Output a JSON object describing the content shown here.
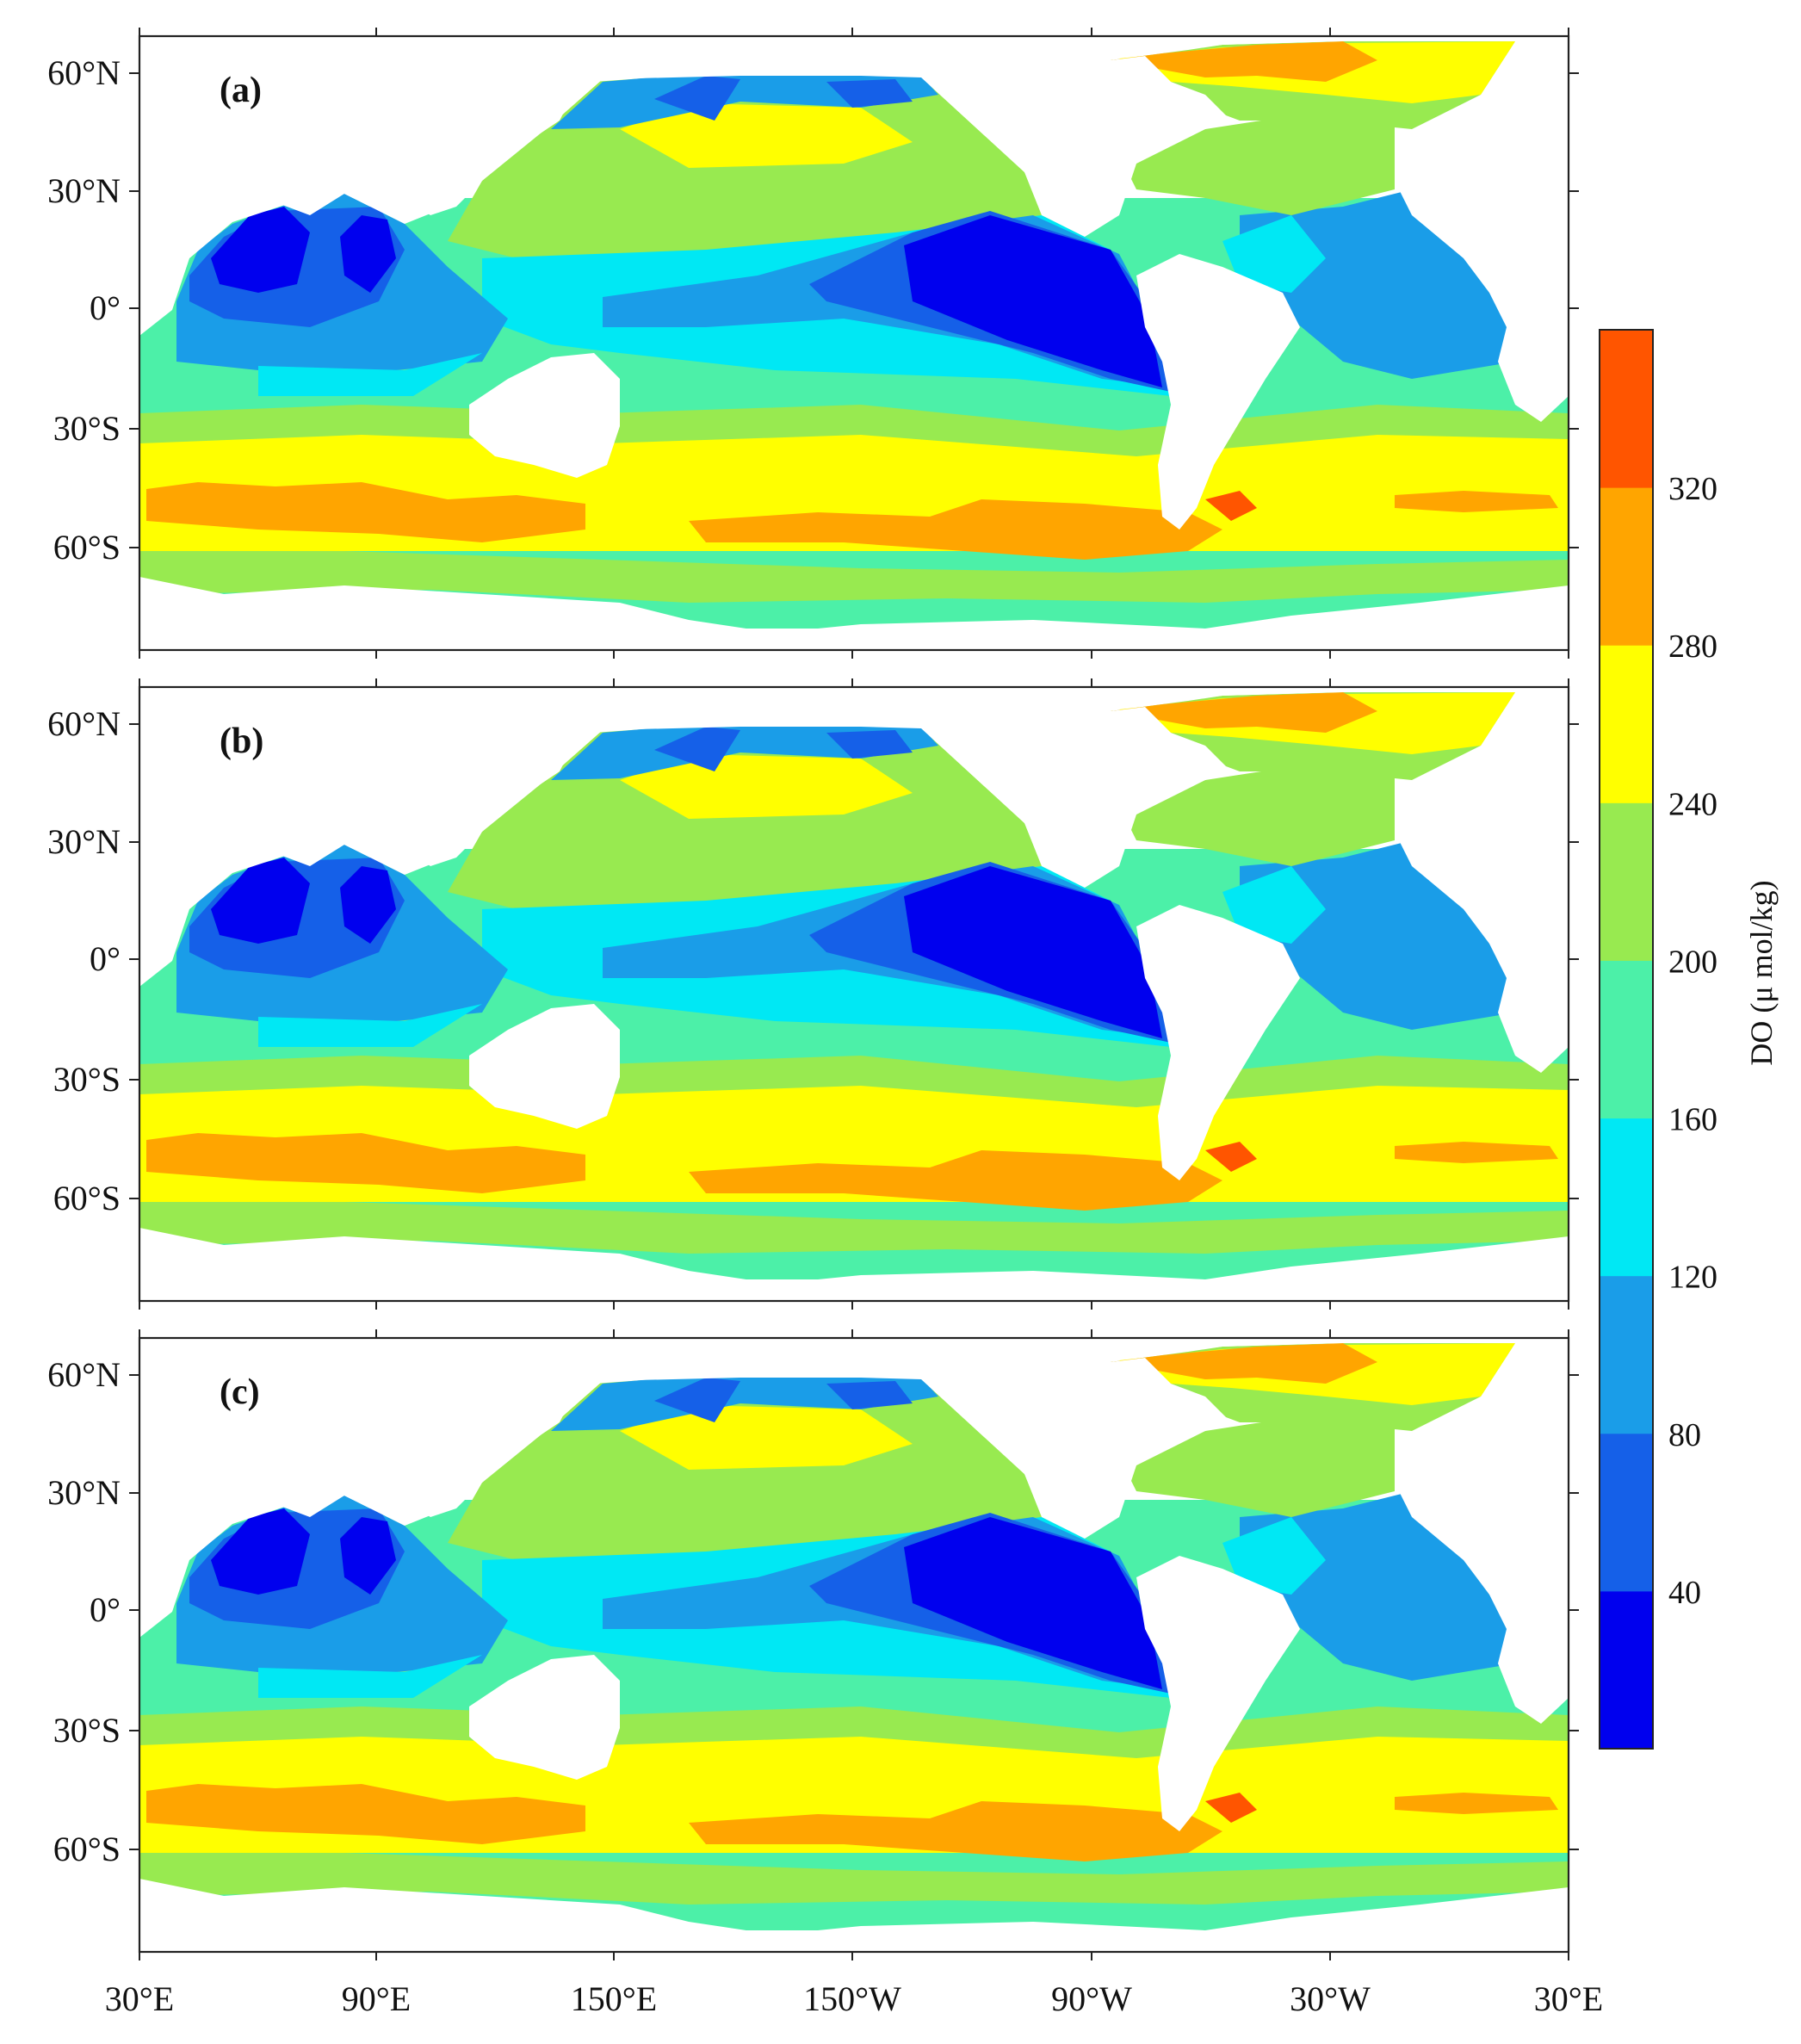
{
  "panels": [
    {
      "label": "(a)"
    },
    {
      "label": "(b)"
    },
    {
      "label": "(c)"
    }
  ],
  "lat_labels": [
    "60°N",
    "30°N",
    "0°",
    "30°S",
    "60°S"
  ],
  "lon_labels": [
    "30°E",
    "90°E",
    "150°E",
    "150°W",
    "90°W",
    "30°W",
    "30°E"
  ],
  "colorbar": {
    "title": "DO (μ mol/kg)",
    "tick_labels": [
      "40",
      "80",
      "120",
      "160",
      "200",
      "240",
      "280",
      "320"
    ],
    "colors": [
      "#0000ee",
      "#1560e8",
      "#1a9de8",
      "#00e8f4",
      "#4cf0a8",
      "#98ea50",
      "#ffff00",
      "#ffa500",
      "#ff5500"
    ]
  },
  "chart_data": {
    "type": "heatmap",
    "title": "",
    "xlabel": "",
    "ylabel": "",
    "xlim": [
      "30°E",
      "30°E"
    ],
    "ylim": [
      "≈80°S",
      "≈72°N"
    ],
    "colorbar_range": [
      0,
      360
    ],
    "colorbar_step": 40,
    "colorbar_label": "DO (μ mol/kg)",
    "panels": [
      "(a)",
      "(b)",
      "(c)"
    ],
    "colors": {
      "0-40": "#0000ee",
      "40-80": "#1560e8",
      "80-120": "#1a9de8",
      "120-160": "#00e8f4",
      "160-200": "#4cf0a8",
      "200-240": "#98ea50",
      "240-280": "#ffff00",
      "280-320": "#ffa500",
      "320-360": "#ff5500"
    }
  }
}
